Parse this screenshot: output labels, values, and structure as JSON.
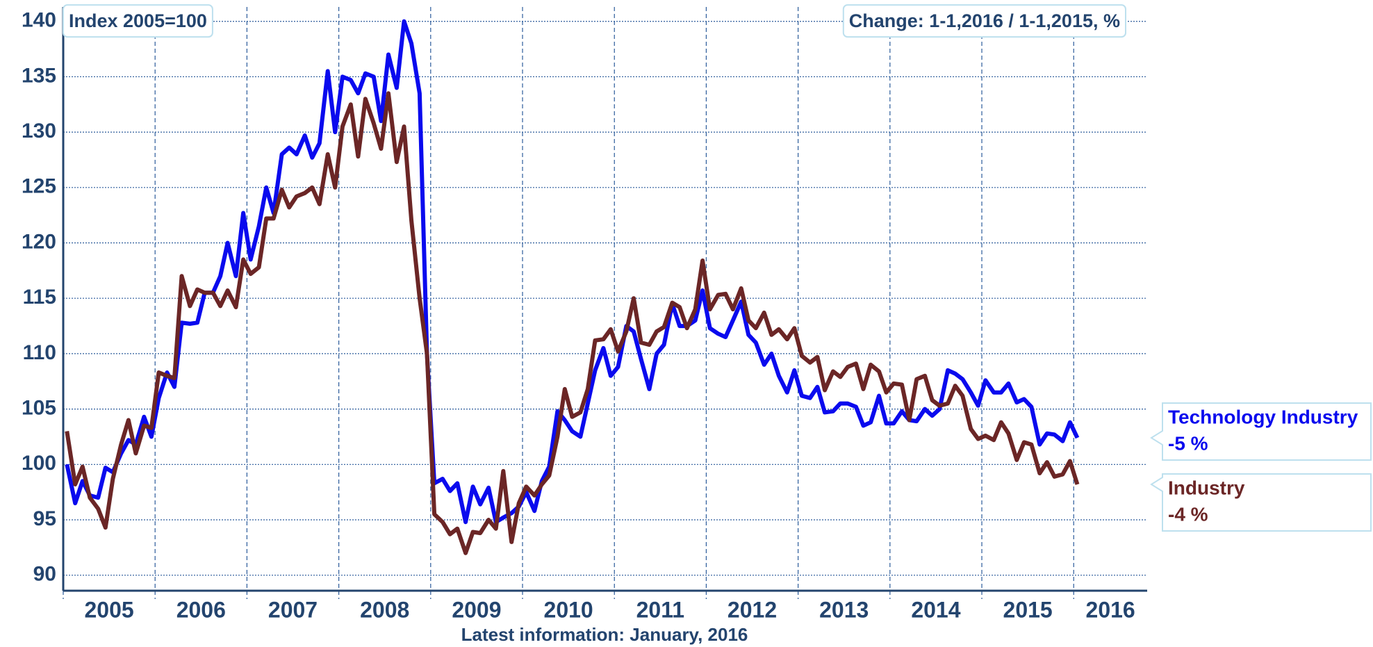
{
  "chart_data": {
    "type": "line",
    "title": "Index 2005=100",
    "subtitle": "Change: 1-1,2016 / 1-1,2015, %",
    "x_label": "Latest information: January, 2016",
    "x": [
      2005.04,
      2005.13,
      2005.21,
      2005.29,
      2005.38,
      2005.46,
      2005.54,
      2005.63,
      2005.71,
      2005.79,
      2005.88,
      2005.96,
      2006.04,
      2006.13,
      2006.21,
      2006.29,
      2006.38,
      2006.46,
      2006.54,
      2006.63,
      2006.71,
      2006.79,
      2006.88,
      2006.96,
      2007.04,
      2007.13,
      2007.21,
      2007.29,
      2007.38,
      2007.46,
      2007.54,
      2007.63,
      2007.71,
      2007.79,
      2007.88,
      2007.96,
      2008.04,
      2008.13,
      2008.21,
      2008.29,
      2008.38,
      2008.46,
      2008.54,
      2008.63,
      2008.71,
      2008.79,
      2008.88,
      2008.96,
      2009.04,
      2009.13,
      2009.21,
      2009.29,
      2009.38,
      2009.46,
      2009.54,
      2009.63,
      2009.71,
      2009.79,
      2009.88,
      2009.96,
      2010.04,
      2010.13,
      2010.21,
      2010.29,
      2010.38,
      2010.46,
      2010.54,
      2010.63,
      2010.71,
      2010.79,
      2010.88,
      2010.96,
      2011.04,
      2011.13,
      2011.21,
      2011.29,
      2011.38,
      2011.46,
      2011.54,
      2011.63,
      2011.71,
      2011.79,
      2011.88,
      2011.96,
      2012.04,
      2012.13,
      2012.21,
      2012.29,
      2012.38,
      2012.46,
      2012.54,
      2012.63,
      2012.71,
      2012.79,
      2012.88,
      2012.96,
      2013.04,
      2013.13,
      2013.21,
      2013.29,
      2013.38,
      2013.46,
      2013.54,
      2013.63,
      2013.71,
      2013.79,
      2013.88,
      2013.96,
      2014.04,
      2014.13,
      2014.21,
      2014.29,
      2014.38,
      2014.46,
      2014.54,
      2014.63,
      2014.71,
      2014.79,
      2014.88,
      2014.96,
      2015.04,
      2015.13,
      2015.21,
      2015.29,
      2015.38,
      2015.46,
      2015.54,
      2015.63,
      2015.71,
      2015.79,
      2015.88,
      2015.96,
      2016.04
    ],
    "series": [
      {
        "name": "Technology Industry",
        "change": "-5 %",
        "color": "#0a0aee",
        "values": [
          100,
          96.5,
          98.5,
          97.2,
          97,
          99.7,
          99.3,
          101,
          102.2,
          101.8,
          104.3,
          102.5,
          106,
          108.3,
          107,
          112.8,
          112.7,
          112.8,
          115.5,
          115.5,
          117,
          120,
          117,
          122.7,
          118.5,
          121.5,
          125,
          122.7,
          128,
          128.6,
          128,
          129.7,
          127.7,
          129,
          135.5,
          130,
          135,
          134.7,
          133.5,
          135.3,
          135,
          131,
          137,
          134,
          140,
          138,
          133.5,
          110,
          98.3,
          98.7,
          97.6,
          98.3,
          94.8,
          98,
          96.4,
          97.9,
          94.8,
          95.2,
          95.6,
          96.2,
          97.5,
          95.8,
          98.5,
          99.8,
          104.8,
          104,
          103,
          102.5,
          105.5,
          108.5,
          110.5,
          108,
          108.8,
          112.5,
          112,
          109.5,
          106.8,
          110,
          110.8,
          114.5,
          112.5,
          112.5,
          113,
          115.7,
          112.3,
          111.8,
          111.5,
          113,
          114.7,
          111.7,
          111,
          109,
          110,
          108,
          106.5,
          108.5,
          106.2,
          106,
          107,
          104.7,
          104.8,
          105.5,
          105.5,
          105.2,
          103.5,
          103.8,
          106.2,
          103.7,
          103.7,
          104.8,
          104,
          103.9,
          105,
          104.4,
          105,
          108.5,
          108.2,
          107.7,
          106.5,
          105.3,
          107.6,
          106.5,
          106.5,
          107.3,
          105.6,
          105.9,
          105.2,
          101.8,
          102.8,
          102.7,
          102.1,
          103.8,
          102.4
        ]
      },
      {
        "name": "Industry",
        "change": "-4 %",
        "color": "#6b2626",
        "values": [
          103,
          98.2,
          99.8,
          97,
          96,
          94.3,
          98.7,
          101.8,
          104,
          101,
          103.5,
          103.3,
          108.3,
          108,
          107.8,
          117,
          114.3,
          115.8,
          115.5,
          115.5,
          114.3,
          115.7,
          114.2,
          118.5,
          117.2,
          117.8,
          122.2,
          122.2,
          124.8,
          123.2,
          124.2,
          124.5,
          125,
          123.5,
          128,
          125,
          130.5,
          132.5,
          127.8,
          133,
          130.8,
          128.5,
          133.5,
          127.3,
          130.5,
          122,
          115,
          110,
          95.5,
          94.8,
          93.7,
          94.2,
          92,
          93.9,
          93.8,
          95,
          94.2,
          99.4,
          93,
          96.5,
          98,
          97.2,
          98.2,
          99,
          102.5,
          106.8,
          104.3,
          104.7,
          106.8,
          111.2,
          111.3,
          112.2,
          110.2,
          112,
          115,
          111,
          110.8,
          112,
          112.4,
          114.6,
          114.2,
          112.3,
          114,
          118.4,
          114,
          115.3,
          115.4,
          114,
          115.9,
          113,
          112.3,
          113.7,
          111.7,
          112.2,
          111.3,
          112.3,
          109.8,
          109.2,
          109.7,
          106.7,
          108.4,
          107.9,
          108.8,
          109.1,
          106.8,
          109,
          108.4,
          106.5,
          107.3,
          107.2,
          104,
          107.7,
          108,
          105.8,
          105.3,
          105.5,
          107.1,
          106.2,
          103.2,
          102.3,
          102.6,
          102.2,
          103.8,
          102.8,
          100.4,
          102,
          101.8,
          99.2,
          100.2,
          98.9,
          99.1,
          100.3,
          98.2
        ]
      }
    ],
    "xlim": [
      2005,
      2016.8
    ],
    "xticks": [
      2005,
      2006,
      2007,
      2008,
      2009,
      2010,
      2011,
      2012,
      2013,
      2014,
      2015,
      2016
    ],
    "ylim": [
      88.6,
      141.3
    ],
    "yticks": [
      90,
      95,
      100,
      105,
      110,
      115,
      120,
      125,
      130,
      135,
      140
    ],
    "grid": true
  }
}
